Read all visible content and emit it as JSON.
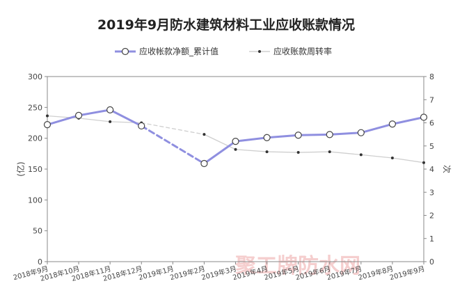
{
  "chart_data": {
    "type": "line",
    "title": "2019年9月防水建筑材料工业应收账款情况",
    "categories": [
      "2018年9月",
      "2018年10月",
      "2018年11月",
      "2018年12月",
      "2019年1月",
      "2019年2月",
      "2019年3月",
      "2019年4月",
      "2019年5月",
      "2019年6月",
      "2019年7月",
      "2019年8月",
      "2019年9月"
    ],
    "series": [
      {
        "name": "应收帐款净额_累计值",
        "axis": "left",
        "color": "#8f8fe0",
        "values": [
          222,
          237,
          246,
          220,
          null,
          159,
          195,
          201,
          205,
          206,
          209,
          223,
          234
        ]
      },
      {
        "name": "应收账款周转率",
        "axis": "right",
        "color": "#cfcfcf",
        "values": [
          6.3,
          6.2,
          6.05,
          6.0,
          null,
          5.5,
          4.85,
          4.75,
          4.72,
          4.75,
          4.62,
          4.48,
          4.28
        ]
      }
    ],
    "left_axis": {
      "label": "(亿)",
      "ylim": [
        0,
        300
      ],
      "ticks": [
        "0",
        "50",
        "100",
        "150",
        "200",
        "250",
        "300"
      ]
    },
    "right_axis": {
      "label": "次",
      "ylim": [
        0,
        8
      ],
      "ticks": [
        "0",
        "1",
        "2",
        "3",
        "4",
        "5",
        "6",
        "7",
        "8"
      ]
    },
    "grid": false,
    "legend_position": "top"
  },
  "watermark": {
    "text": "聚工牌防水网",
    "color": "#f3c2c2"
  }
}
